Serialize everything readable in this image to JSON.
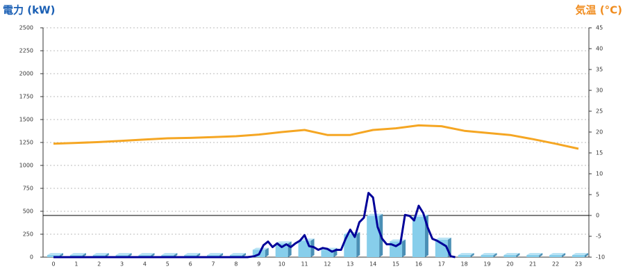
{
  "chart_data": {
    "type": "bar",
    "y_label": "電力 (kW)",
    "y2_label": "気温 (°C)",
    "categories": [
      "0",
      "1",
      "2",
      "3",
      "4",
      "5",
      "6",
      "7",
      "8",
      "9",
      "10",
      "11",
      "12",
      "13",
      "14",
      "15",
      "16",
      "17",
      "18",
      "19",
      "20",
      "21",
      "22",
      "23"
    ],
    "ylim": [
      0,
      2500
    ],
    "yticks": [
      0,
      250,
      500,
      750,
      1000,
      1250,
      1500,
      1750,
      2000,
      2250,
      2500
    ],
    "y2lim": [
      -10,
      45
    ],
    "y2ticks": [
      -10,
      -5,
      0,
      5,
      10,
      15,
      20,
      25,
      30,
      35,
      40,
      45
    ],
    "y2_reference_line": 0,
    "grid": true,
    "series": [
      {
        "type": "bar",
        "color": "#87ceeb",
        "values": [
          0,
          0,
          0,
          0,
          0,
          0,
          0,
          0,
          0,
          80,
          150,
          180,
          80,
          250,
          450,
          170,
          440,
          190,
          0,
          0,
          0,
          0,
          0,
          0
        ]
      },
      {
        "type": "line",
        "color": "#000099",
        "x": [
          0,
          8.5,
          8.8,
          9,
          9.2,
          9.4,
          9.6,
          9.8,
          10,
          10.2,
          10.4,
          10.6,
          10.8,
          11,
          11.2,
          11.4,
          11.6,
          11.8,
          12,
          12.2,
          12.4,
          12.6,
          12.8,
          13,
          13.2,
          13.4,
          13.6,
          13.8,
          14,
          14.2,
          14.4,
          14.6,
          14.8,
          15,
          15.2,
          15.4,
          15.6,
          15.8,
          16,
          16.2,
          16.4,
          16.6,
          16.8,
          17,
          17.2,
          17.4,
          17.6
        ],
        "values": [
          0,
          0,
          10,
          30,
          130,
          170,
          110,
          150,
          110,
          140,
          110,
          150,
          180,
          240,
          120,
          110,
          80,
          100,
          90,
          60,
          80,
          80,
          200,
          300,
          220,
          380,
          430,
          700,
          650,
          330,
          200,
          140,
          140,
          120,
          150,
          460,
          450,
          400,
          560,
          480,
          320,
          200,
          180,
          150,
          120,
          10,
          0
        ]
      },
      {
        "type": "line",
        "axis": "y2",
        "color": "#f5a623",
        "values": [
          17.2,
          17.4,
          17.6,
          17.9,
          18.2,
          18.5,
          18.6,
          18.8,
          19.0,
          19.4,
          20.0,
          20.5,
          19.3,
          19.3,
          20.5,
          20.9,
          21.6,
          21.4,
          20.3,
          19.8,
          19.3,
          18.3,
          17.2,
          16.0
        ]
      }
    ]
  }
}
